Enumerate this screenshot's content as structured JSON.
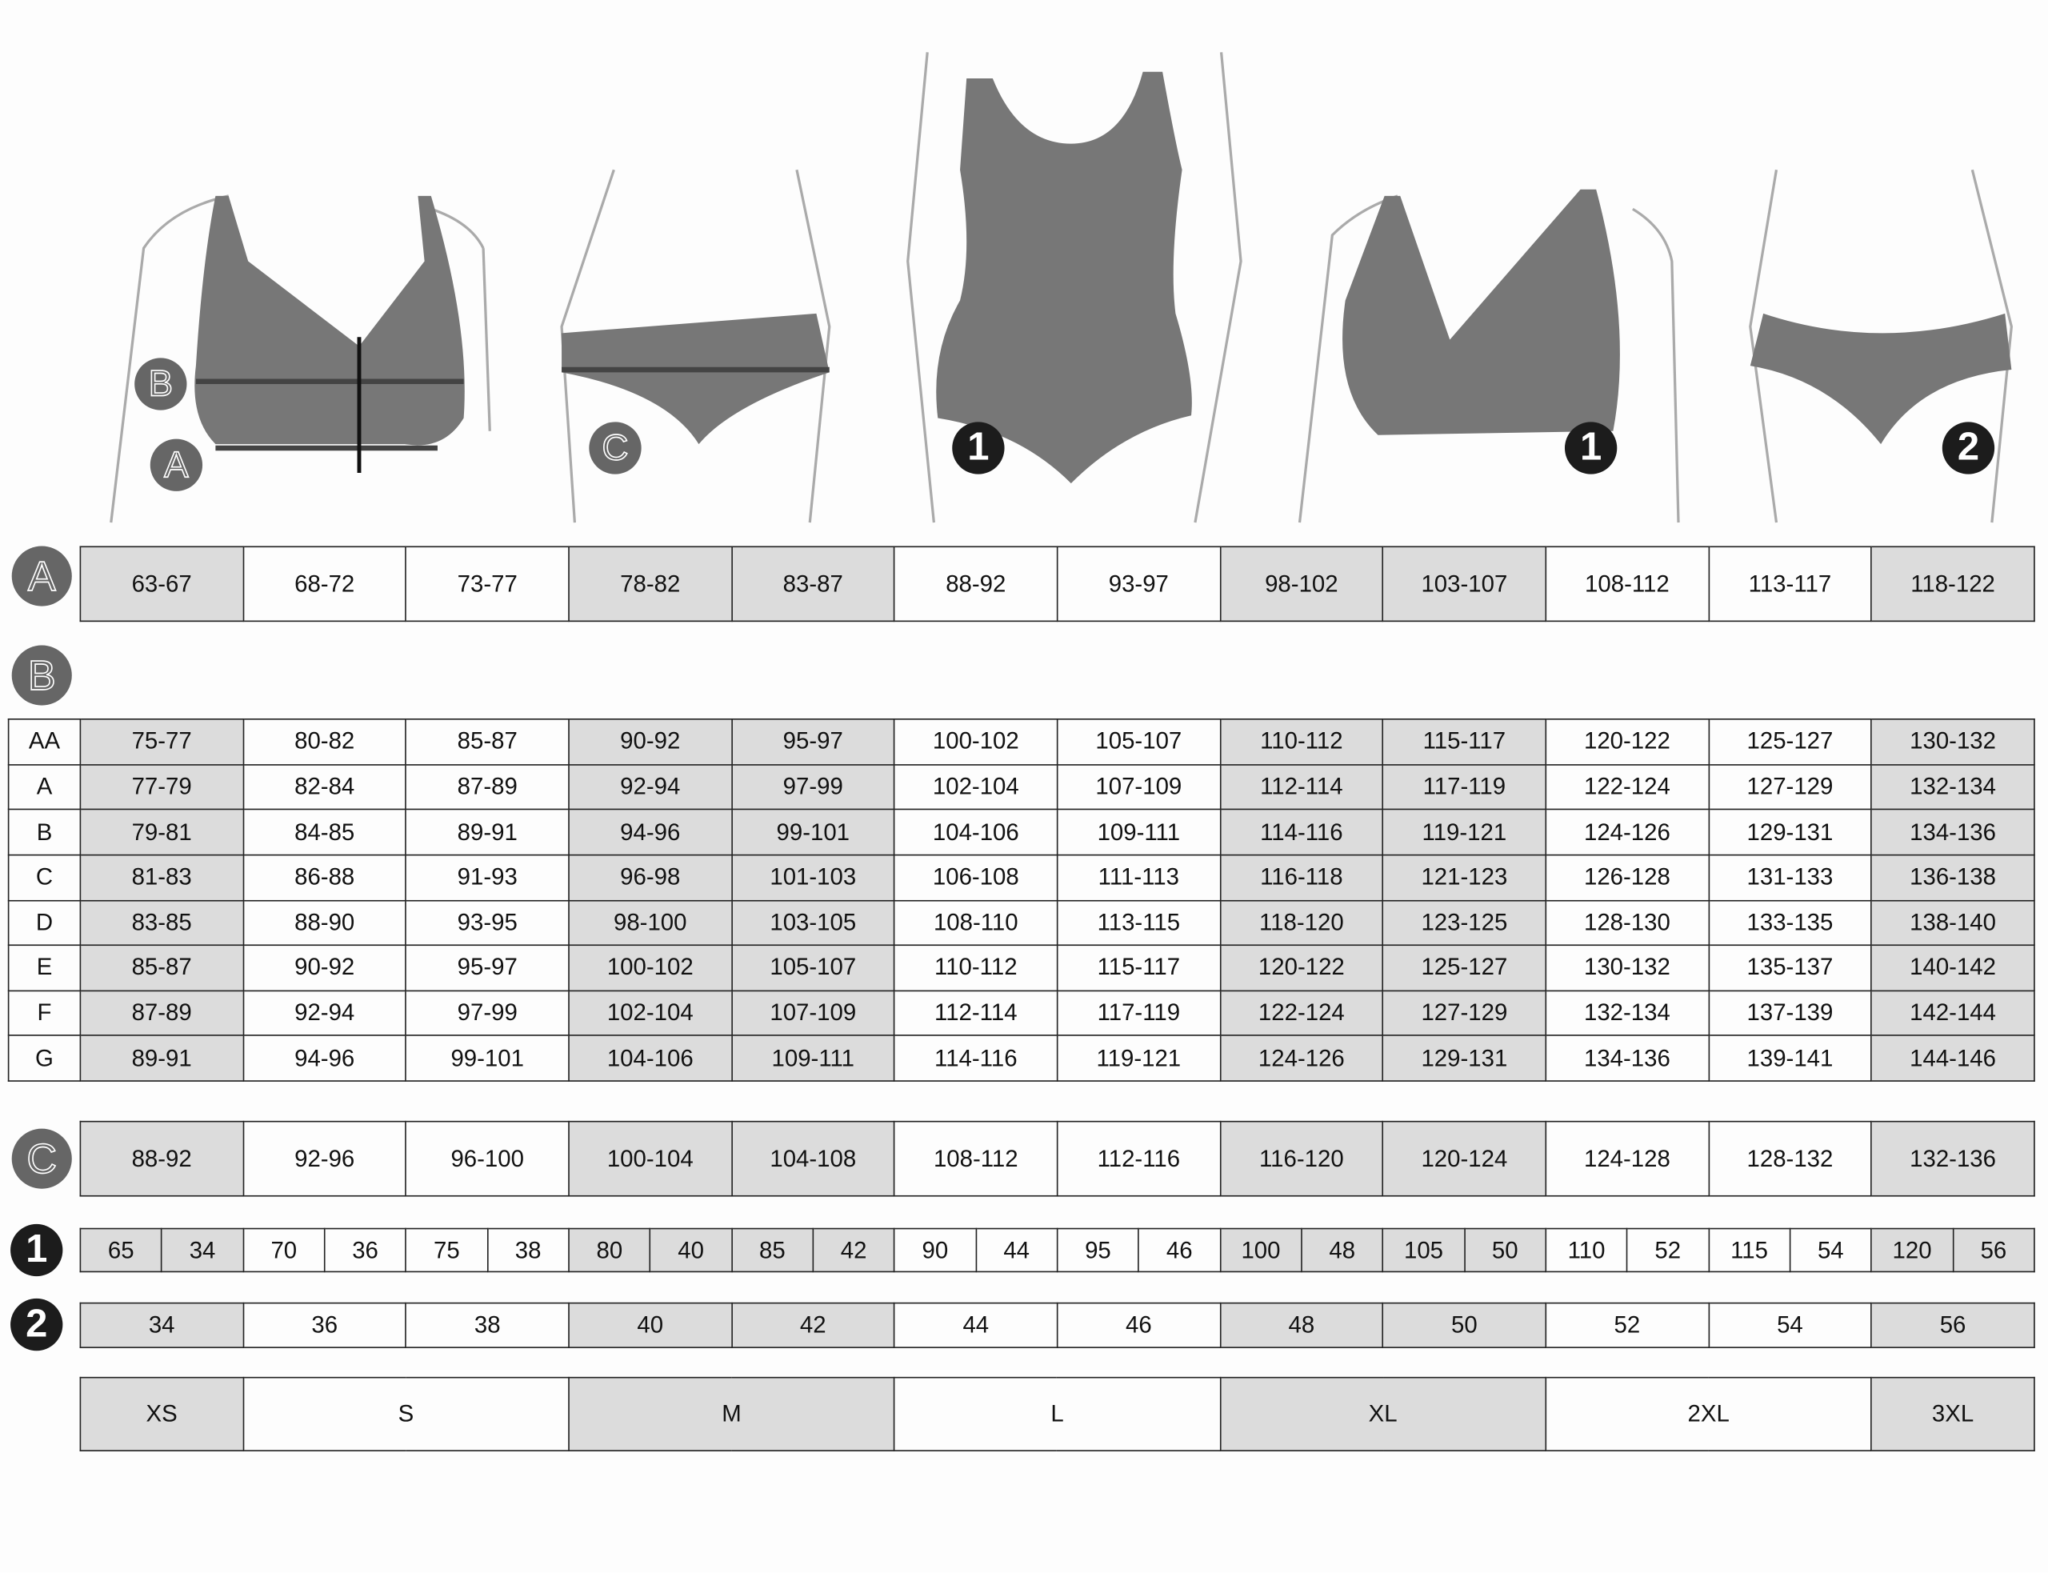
{
  "illustration_labels": {
    "bust_under": "A",
    "bust_over": "B",
    "hips": "C",
    "size_marker_1": "1",
    "size_marker_2": "2"
  },
  "colors": {
    "shaded_cell": "#dcdcdc",
    "garment": "#777777",
    "badge_letter": "#666666",
    "badge_number": "#1c1c1c"
  },
  "shaded_columns": [
    0,
    3,
    4,
    7,
    8,
    11
  ],
  "table_a": {
    "badge": "A",
    "cells": [
      "63-67",
      "68-72",
      "73-77",
      "78-82",
      "83-87",
      "88-92",
      "93-97",
      "98-102",
      "103-107",
      "108-112",
      "113-117",
      "118-122"
    ]
  },
  "table_b": {
    "badge": "B",
    "rows": [
      {
        "cup": "AA",
        "cells": [
          "75-77",
          "80-82",
          "85-87",
          "90-92",
          "95-97",
          "100-102",
          "105-107",
          "110-112",
          "115-117",
          "120-122",
          "125-127",
          "130-132"
        ]
      },
      {
        "cup": "A",
        "cells": [
          "77-79",
          "82-84",
          "87-89",
          "92-94",
          "97-99",
          "102-104",
          "107-109",
          "112-114",
          "117-119",
          "122-124",
          "127-129",
          "132-134"
        ]
      },
      {
        "cup": "B",
        "cells": [
          "79-81",
          "84-85",
          "89-91",
          "94-96",
          "99-101",
          "104-106",
          "109-111",
          "114-116",
          "119-121",
          "124-126",
          "129-131",
          "134-136"
        ]
      },
      {
        "cup": "C",
        "cells": [
          "81-83",
          "86-88",
          "91-93",
          "96-98",
          "101-103",
          "106-108",
          "111-113",
          "116-118",
          "121-123",
          "126-128",
          "131-133",
          "136-138"
        ]
      },
      {
        "cup": "D",
        "cells": [
          "83-85",
          "88-90",
          "93-95",
          "98-100",
          "103-105",
          "108-110",
          "113-115",
          "118-120",
          "123-125",
          "128-130",
          "133-135",
          "138-140"
        ]
      },
      {
        "cup": "E",
        "cells": [
          "85-87",
          "90-92",
          "95-97",
          "100-102",
          "105-107",
          "110-112",
          "115-117",
          "120-122",
          "125-127",
          "130-132",
          "135-137",
          "140-142"
        ]
      },
      {
        "cup": "F",
        "cells": [
          "87-89",
          "92-94",
          "97-99",
          "102-104",
          "107-109",
          "112-114",
          "117-119",
          "122-124",
          "127-129",
          "132-134",
          "137-139",
          "142-144"
        ]
      },
      {
        "cup": "G",
        "cells": [
          "89-91",
          "94-96",
          "99-101",
          "104-106",
          "109-111",
          "114-116",
          "119-121",
          "124-126",
          "129-131",
          "134-136",
          "139-141",
          "144-146"
        ]
      }
    ]
  },
  "table_c": {
    "badge": "C",
    "cells": [
      "88-92",
      "92-96",
      "96-100",
      "100-104",
      "104-108",
      "108-112",
      "112-116",
      "116-120",
      "120-124",
      "124-128",
      "128-132",
      "132-136"
    ]
  },
  "row_1": {
    "badge": "1",
    "cells": [
      [
        "65",
        "34"
      ],
      [
        "70",
        "36"
      ],
      [
        "75",
        "38"
      ],
      [
        "80",
        "40"
      ],
      [
        "85",
        "42"
      ],
      [
        "90",
        "44"
      ],
      [
        "95",
        "46"
      ],
      [
        "100",
        "48"
      ],
      [
        "105",
        "50"
      ],
      [
        "110",
        "52"
      ],
      [
        "115",
        "54"
      ],
      [
        "120",
        "56"
      ]
    ]
  },
  "row_2": {
    "badge": "2",
    "cells": [
      "34",
      "36",
      "38",
      "40",
      "42",
      "44",
      "46",
      "48",
      "50",
      "52",
      "54",
      "56"
    ]
  },
  "sizes": [
    {
      "label": "XS",
      "span": 1
    },
    {
      "label": "S",
      "span": 2
    },
    {
      "label": "M",
      "span": 2
    },
    {
      "label": "L",
      "span": 2
    },
    {
      "label": "XL",
      "span": 2
    },
    {
      "label": "2XL",
      "span": 2
    },
    {
      "label": "3XL",
      "span": 1
    }
  ]
}
